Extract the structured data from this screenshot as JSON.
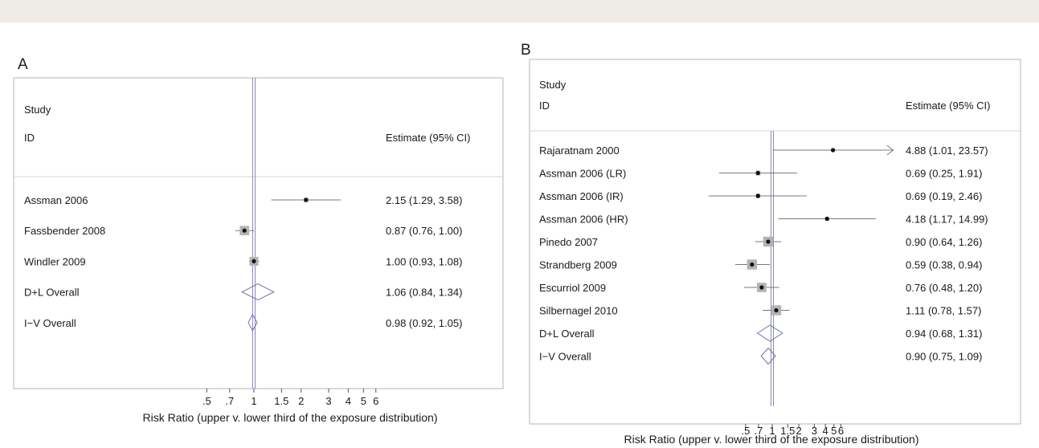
{
  "chart_data": [
    {
      "type": "forest",
      "panel_label": "A",
      "column_headers": {
        "study_line1": "Study",
        "study_line2": "ID",
        "estimate": "Estimate (95% CI)"
      },
      "rows": [
        {
          "study": "Assman 2006",
          "estimate": 2.15,
          "lower": 1.29,
          "upper": 3.58,
          "label": "2.15 (1.29, 3.58)",
          "kind": "study",
          "weight": 0.12
        },
        {
          "study": "Fassbender 2008",
          "estimate": 0.87,
          "lower": 0.76,
          "upper": 1.0,
          "label": "0.87 (0.76, 1.00)",
          "kind": "study",
          "weight": 0.55
        },
        {
          "study": "Windler 2009",
          "estimate": 1.0,
          "lower": 0.93,
          "upper": 1.08,
          "label": "1.00 (0.93, 1.08)",
          "kind": "study",
          "weight": 0.5
        },
        {
          "study": "D+L Overall",
          "estimate": 1.06,
          "lower": 0.84,
          "upper": 1.34,
          "label": "1.06 (0.84, 1.34)",
          "kind": "overall"
        },
        {
          "study": "I−V Overall",
          "estimate": 0.98,
          "lower": 0.92,
          "upper": 1.05,
          "label": "0.98 (0.92, 1.05)",
          "kind": "overall"
        }
      ],
      "x_scale": "log",
      "xlim": [
        0.5,
        6
      ],
      "reference_line": 1,
      "xticks": [
        {
          "value": 0.5,
          "label": ".5"
        },
        {
          "value": 0.7,
          "label": ".7"
        },
        {
          "value": 1,
          "label": "1"
        },
        {
          "value": 1.5,
          "label": "1.5"
        },
        {
          "value": 2,
          "label": "2"
        },
        {
          "value": 3,
          "label": "3"
        },
        {
          "value": 4,
          "label": "4"
        },
        {
          "value": 5,
          "label": "5"
        },
        {
          "value": 6,
          "label": "6"
        }
      ],
      "xlabel": "Risk Ratio (upper v. lower third of the exposure distribution)"
    },
    {
      "type": "forest",
      "panel_label": "B",
      "column_headers": {
        "study_line1": "Study",
        "study_line2": "ID",
        "estimate": "Estimate (95% CI)"
      },
      "rows": [
        {
          "study": "Rajaratnam 2000",
          "estimate": 4.88,
          "lower": 1.01,
          "upper": 23.57,
          "label": "4.88 (1.01, 23.57)",
          "kind": "study",
          "weight": 0.05,
          "upper_truncated": true
        },
        {
          "study": "Assman 2006 (LR)",
          "estimate": 0.69,
          "lower": 0.25,
          "upper": 1.91,
          "label": "0.69 (0.25, 1.91)",
          "kind": "study",
          "weight": 0.15
        },
        {
          "study": "Assman 2006 (IR)",
          "estimate": 0.69,
          "lower": 0.19,
          "upper": 2.46,
          "label": "0.69 (0.19, 2.46)",
          "kind": "study",
          "weight": 0.12
        },
        {
          "study": "Assman 2006 (HR)",
          "estimate": 4.18,
          "lower": 1.17,
          "upper": 14.99,
          "label": "4.18 (1.17, 14.99)",
          "kind": "study",
          "weight": 0.08
        },
        {
          "study": "Pinedo 2007",
          "estimate": 0.9,
          "lower": 0.64,
          "upper": 1.26,
          "label": "0.90 (0.64, 1.26)",
          "kind": "study",
          "weight": 0.6
        },
        {
          "study": "Strandberg 2009",
          "estimate": 0.59,
          "lower": 0.38,
          "upper": 0.94,
          "label": "0.59 (0.38, 0.94)",
          "kind": "study",
          "weight": 0.6
        },
        {
          "study": "Escurriol 2009",
          "estimate": 0.76,
          "lower": 0.48,
          "upper": 1.2,
          "label": "0.76 (0.48, 1.20)",
          "kind": "study",
          "weight": 0.55
        },
        {
          "study": "Silbernagel 2010",
          "estimate": 1.11,
          "lower": 0.78,
          "upper": 1.57,
          "label": "1.11 (0.78, 1.57)",
          "kind": "study",
          "weight": 0.6
        },
        {
          "study": "D+L Overall",
          "estimate": 0.94,
          "lower": 0.68,
          "upper": 1.31,
          "label": "0.94 (0.68, 1.31)",
          "kind": "overall"
        },
        {
          "study": "I−V Overall",
          "estimate": 0.9,
          "lower": 0.75,
          "upper": 1.09,
          "label": "0.90 (0.75, 1.09)",
          "kind": "overall"
        }
      ],
      "x_scale": "log",
      "xlim": [
        0.5,
        6
      ],
      "reference_line": 1,
      "xticks": [
        {
          "value": 0.5,
          "label": ".5"
        },
        {
          "value": 0.7,
          "label": ".7"
        },
        {
          "value": 1,
          "label": "1"
        },
        {
          "value": 1.5,
          "label": "1.5"
        },
        {
          "value": 2,
          "label": "2"
        },
        {
          "value": 3,
          "label": "3"
        },
        {
          "value": 4,
          "label": "4"
        },
        {
          "value": 5,
          "label": "5"
        },
        {
          "value": 6,
          "label": "6"
        }
      ],
      "xlabel": "Risk Ratio (upper v. lower third of the exposure distribution)"
    }
  ]
}
